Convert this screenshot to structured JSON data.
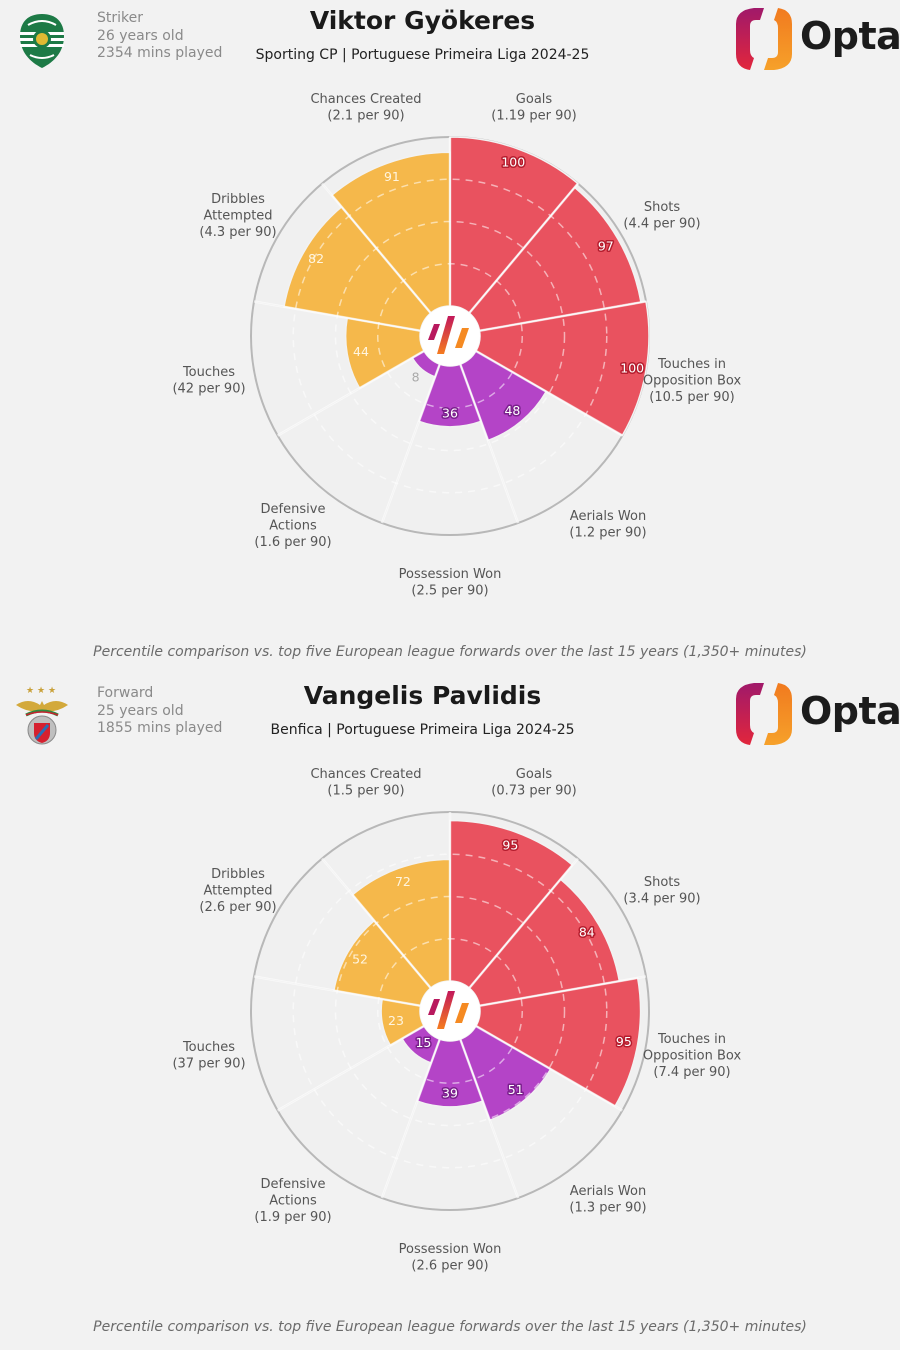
{
  "colors": {
    "attacking": "#e9525f",
    "possession": "#f5b84b",
    "defending": "#b444c7",
    "empty_segment": "#f0f0f0",
    "outer_ring": "#b8b8b8",
    "background": "#f2f2f2"
  },
  "footnote": "Percentile comparison vs. top five European league forwards over the last 15 years (1,350+ minutes)",
  "brand": {
    "name": "Opta",
    "icon": "opta-logo-icon",
    "center_icon": "opta-stripes-icon"
  },
  "players": [
    {
      "name": "Viktor Gyökeres",
      "position": "Striker",
      "age": "26 years old",
      "minutes": "2354 mins played",
      "subtitle": "Sporting CP | Portuguese Primeira Liga 2024-25",
      "club_badge_icon": "sporting-cp-badge-icon",
      "chart_data": {
        "type": "polar-bar",
        "title": "Viktor Gyökeres",
        "subtitle": "Sporting CP | Portuguese Primeira Liga 2024-25",
        "radial_range": [
          0,
          100
        ],
        "grid_rings": [
          25,
          50,
          75
        ],
        "categories": [
          "Goals",
          "Shots",
          "Touches in Opposition Box",
          "Aerials Won",
          "Possession Won",
          "Defensive Actions",
          "Touches",
          "Dribbles Attempted",
          "Chances Created"
        ],
        "label_lines": [
          [
            "Goals",
            "(1.19 per 90)"
          ],
          [
            "Shots",
            "(4.4 per 90)"
          ],
          [
            "Touches in",
            "Opposition Box",
            "(10.5 per 90)"
          ],
          [
            "Aerials Won",
            "(1.2 per 90)"
          ],
          [
            "Possession Won",
            "(2.5 per 90)"
          ],
          [
            "Defensive",
            "Actions",
            "(1.6 per 90)"
          ],
          [
            "Touches",
            "(42 per 90)"
          ],
          [
            "Dribbles",
            "Attempted",
            "(4.3 per 90)"
          ],
          [
            "Chances Created",
            "(2.1 per 90)"
          ]
        ],
        "per90": [
          "1.19",
          "4.4",
          "10.5",
          "1.2",
          "2.5",
          "1.6",
          "42",
          "4.3",
          "2.1"
        ],
        "values": [
          100,
          97,
          100,
          48,
          36,
          8,
          44,
          82,
          91
        ],
        "groups": [
          "attacking",
          "attacking",
          "attacking",
          "defending",
          "defending",
          "defending",
          "possession",
          "possession",
          "possession"
        ]
      }
    },
    {
      "name": "Vangelis Pavlidis",
      "position": "Forward",
      "age": "25 years old",
      "minutes": "1855 mins played",
      "subtitle": "Benfica | Portuguese Primeira Liga 2024-25",
      "club_badge_icon": "benfica-badge-icon",
      "chart_data": {
        "type": "polar-bar",
        "title": "Vangelis Pavlidis",
        "subtitle": "Benfica | Portuguese Primeira Liga 2024-25",
        "radial_range": [
          0,
          100
        ],
        "grid_rings": [
          25,
          50,
          75
        ],
        "categories": [
          "Goals",
          "Shots",
          "Touches in Opposition Box",
          "Aerials Won",
          "Possession Won",
          "Defensive Actions",
          "Touches",
          "Dribbles Attempted",
          "Chances Created"
        ],
        "label_lines": [
          [
            "Goals",
            "(0.73 per 90)"
          ],
          [
            "Shots",
            "(3.4 per 90)"
          ],
          [
            "Touches in",
            "Opposition Box",
            "(7.4 per 90)"
          ],
          [
            "Aerials Won",
            "(1.3 per 90)"
          ],
          [
            "Possession Won",
            "(2.6 per 90)"
          ],
          [
            "Defensive",
            "Actions",
            "(1.9 per 90)"
          ],
          [
            "Touches",
            "(37 per 90)"
          ],
          [
            "Dribbles",
            "Attempted",
            "(2.6 per 90)"
          ],
          [
            "Chances Created",
            "(1.5 per 90)"
          ]
        ],
        "per90": [
          "0.73",
          "3.4",
          "7.4",
          "1.3",
          "2.6",
          "1.9",
          "37",
          "2.6",
          "1.5"
        ],
        "values": [
          95,
          84,
          95,
          51,
          39,
          15,
          23,
          52,
          72
        ],
        "groups": [
          "attacking",
          "attacking",
          "attacking",
          "defending",
          "defending",
          "defending",
          "possession",
          "possession",
          "possession"
        ]
      }
    }
  ]
}
